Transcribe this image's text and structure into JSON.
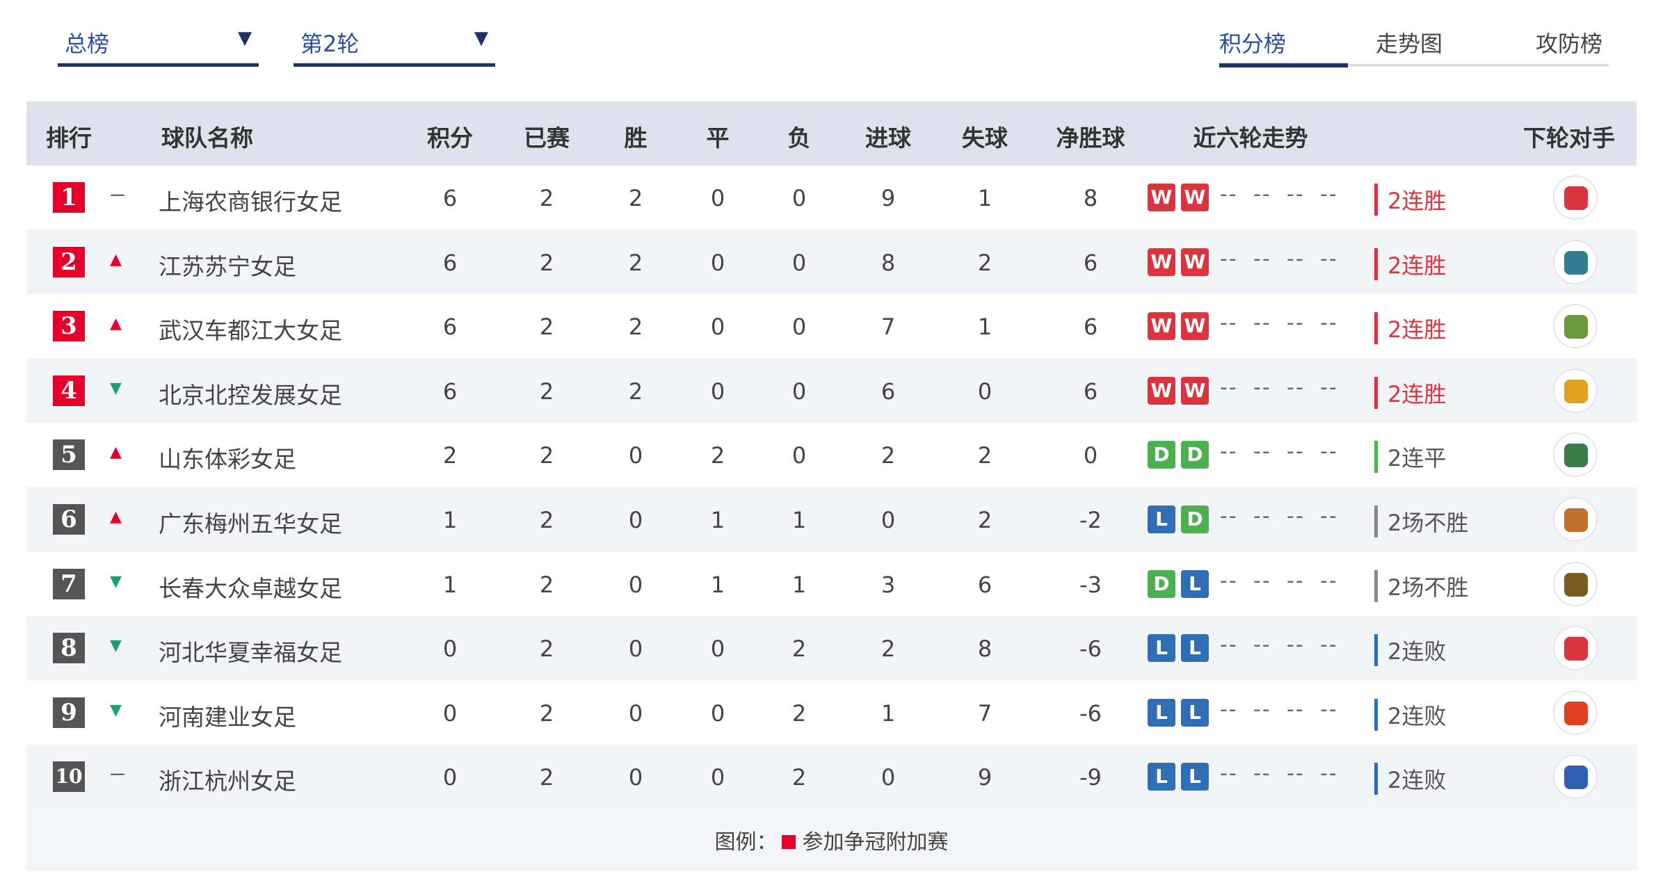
{
  "filters": {
    "scope": "总榜",
    "round": "第2轮"
  },
  "tabs": [
    {
      "label": "积分榜",
      "active": true
    },
    {
      "label": "走势图"
    },
    {
      "label": "攻防榜"
    }
  ],
  "headers": {
    "rank": "排行",
    "team": "球队名称",
    "pts": "积分",
    "played": "已赛",
    "w": "胜",
    "d": "平",
    "l": "负",
    "gf": "进球",
    "ga": "失球",
    "gd": "净胜球",
    "trend": "近六轮走势",
    "next": "下轮对手"
  },
  "colors": {
    "playoff": "#e4002b",
    "normal": "#555555",
    "W": "#d9343f",
    "D": "#4caf50",
    "L": "#2f6db5",
    "up": "#e4002b",
    "down": "#1a9e77"
  },
  "placeholder": "--",
  "rows": [
    {
      "rank": "1",
      "move": "same",
      "team": "上海农商银行女足",
      "pts": "6",
      "played": "2",
      "w": "2",
      "d": "0",
      "l": "0",
      "gf": "9",
      "ga": "1",
      "gd": "8",
      "form": [
        "W",
        "W"
      ],
      "streak": "2连胜",
      "playoff": true,
      "logo": "#d9343f"
    },
    {
      "rank": "2",
      "move": "up",
      "team": "江苏苏宁女足",
      "pts": "6",
      "played": "2",
      "w": "2",
      "d": "0",
      "l": "0",
      "gf": "8",
      "ga": "2",
      "gd": "6",
      "form": [
        "W",
        "W"
      ],
      "streak": "2连胜",
      "playoff": true,
      "logo": "#2f7d8f"
    },
    {
      "rank": "3",
      "move": "up",
      "team": "武汉车都江大女足",
      "pts": "6",
      "played": "2",
      "w": "2",
      "d": "0",
      "l": "0",
      "gf": "7",
      "ga": "1",
      "gd": "6",
      "form": [
        "W",
        "W"
      ],
      "streak": "2连胜",
      "playoff": true,
      "logo": "#6a9a3a"
    },
    {
      "rank": "4",
      "move": "down",
      "team": "北京北控发展女足",
      "pts": "6",
      "played": "2",
      "w": "2",
      "d": "0",
      "l": "0",
      "gf": "6",
      "ga": "0",
      "gd": "6",
      "form": [
        "W",
        "W"
      ],
      "streak": "2连胜",
      "playoff": true,
      "logo": "#e0a020"
    },
    {
      "rank": "5",
      "move": "up",
      "team": "山东体彩女足",
      "pts": "2",
      "played": "2",
      "w": "0",
      "d": "2",
      "l": "0",
      "gf": "2",
      "ga": "2",
      "gd": "0",
      "form": [
        "D",
        "D"
      ],
      "streak": "2连平",
      "playoff": false,
      "logo": "#3d7a4a"
    },
    {
      "rank": "6",
      "move": "up",
      "team": "广东梅州五华女足",
      "pts": "1",
      "played": "2",
      "w": "0",
      "d": "1",
      "l": "1",
      "gf": "0",
      "ga": "2",
      "gd": "-2",
      "form": [
        "L",
        "D"
      ],
      "streak": "2场不胜",
      "playoff": false,
      "logo": "#c0702a"
    },
    {
      "rank": "7",
      "move": "down",
      "team": "长春大众卓越女足",
      "pts": "1",
      "played": "2",
      "w": "0",
      "d": "1",
      "l": "1",
      "gf": "3",
      "ga": "6",
      "gd": "-3",
      "form": [
        "D",
        "L"
      ],
      "streak": "2场不胜",
      "playoff": false,
      "logo": "#7a5a20"
    },
    {
      "rank": "8",
      "move": "down",
      "team": "河北华夏幸福女足",
      "pts": "0",
      "played": "2",
      "w": "0",
      "d": "0",
      "l": "2",
      "gf": "2",
      "ga": "8",
      "gd": "-6",
      "form": [
        "L",
        "L"
      ],
      "streak": "2连败",
      "playoff": false,
      "logo": "#d9343f"
    },
    {
      "rank": "9",
      "move": "down",
      "team": "河南建业女足",
      "pts": "0",
      "played": "2",
      "w": "0",
      "d": "0",
      "l": "2",
      "gf": "1",
      "ga": "7",
      "gd": "-6",
      "form": [
        "L",
        "L"
      ],
      "streak": "2连败",
      "playoff": false,
      "logo": "#e04020"
    },
    {
      "rank": "10",
      "move": "same",
      "team": "浙江杭州女足",
      "pts": "0",
      "played": "2",
      "w": "0",
      "d": "0",
      "l": "2",
      "gf": "0",
      "ga": "9",
      "gd": "-9",
      "form": [
        "L",
        "L"
      ],
      "streak": "2连败",
      "playoff": false,
      "logo": "#3060b0"
    }
  ],
  "legend": {
    "label": "图例：",
    "item": "参加争冠附加赛"
  }
}
